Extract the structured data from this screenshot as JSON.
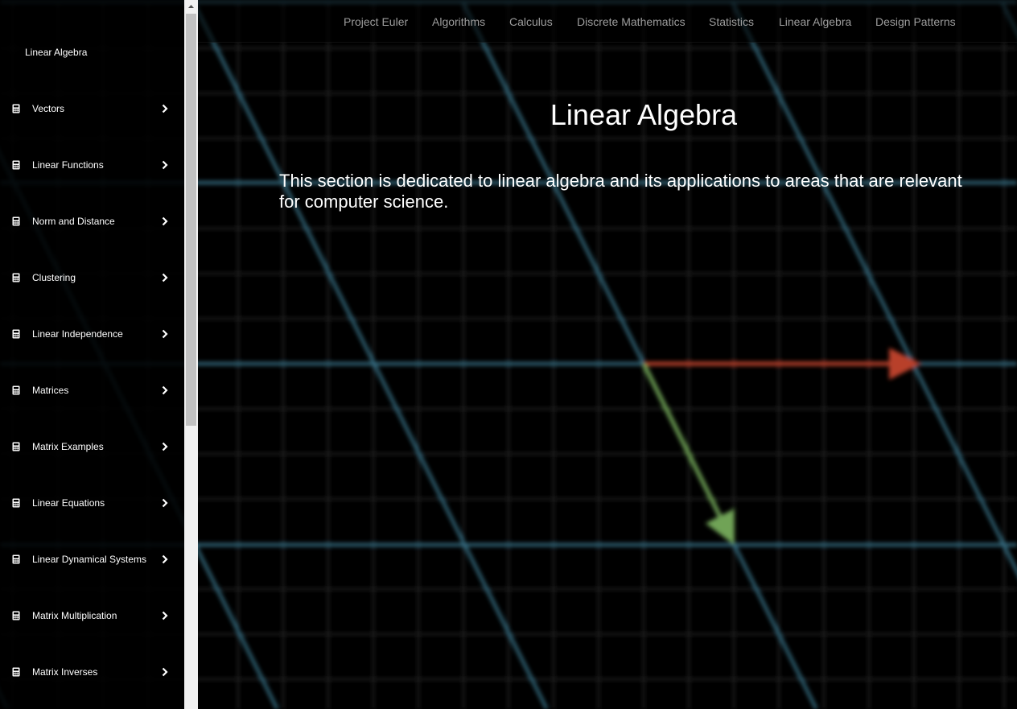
{
  "nav": {
    "links": [
      {
        "label": "Project Euler"
      },
      {
        "label": "Algorithms"
      },
      {
        "label": "Calculus"
      },
      {
        "label": "Discrete Mathematics"
      },
      {
        "label": "Statistics"
      },
      {
        "label": "Linear Algebra"
      },
      {
        "label": "Design Patterns"
      }
    ]
  },
  "sidebar": {
    "title": "Linear Algebra",
    "item_icon": "calculator-icon",
    "items": [
      {
        "label": "Vectors"
      },
      {
        "label": "Linear Functions"
      },
      {
        "label": "Norm and Distance"
      },
      {
        "label": "Clustering"
      },
      {
        "label": "Linear Independence"
      },
      {
        "label": "Matrices"
      },
      {
        "label": "Matrix Examples"
      },
      {
        "label": "Linear Equations"
      },
      {
        "label": "Linear Dynamical Systems"
      },
      {
        "label": "Matrix Multiplication"
      },
      {
        "label": "Matrix Inverses"
      }
    ]
  },
  "main": {
    "title": "Linear Algebra",
    "intro": "This section is dedicated to linear algebra and its applications to areas that are relevant for computer science."
  },
  "colors": {
    "grid_line": "#3c7d95",
    "vector_red": "#b8402a",
    "vector_green": "#6fa356",
    "nav_text": "#9d9d9d"
  }
}
